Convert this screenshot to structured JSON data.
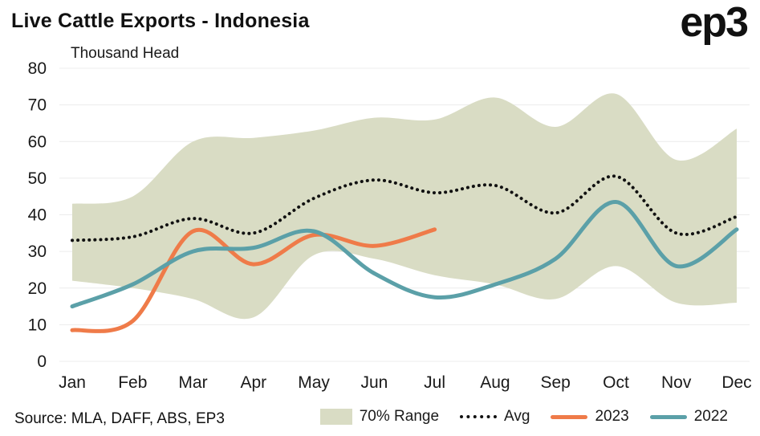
{
  "header": {
    "title": "Live Cattle Exports - Indonesia",
    "logo": "ep3"
  },
  "footer": {
    "source": "Source: MLA, DAFF, ABS, EP3"
  },
  "chart_data": {
    "type": "line",
    "title": "Live Cattle Exports - Indonesia",
    "ylabel": "Thousand Head",
    "xlabel": "",
    "categories": [
      "Jan",
      "Feb",
      "Mar",
      "Apr",
      "May",
      "Jun",
      "Jul",
      "Aug",
      "Sep",
      "Oct",
      "Nov",
      "Dec"
    ],
    "ylim": [
      0,
      80
    ],
    "ytick": 10,
    "grid": "horizontal",
    "legend_position": "bottom",
    "band": {
      "label": "70% Range",
      "color": "#d9dcc4",
      "upper": [
        43,
        45,
        60,
        61,
        63,
        66.5,
        66,
        72,
        64,
        73,
        55,
        63.5
      ],
      "lower": [
        22,
        20,
        17,
        12,
        29,
        28,
        23.5,
        21,
        17,
        26,
        16,
        16
      ]
    },
    "series": [
      {
        "name": "Avg",
        "style": "dotted",
        "color": "#111111",
        "values": [
          33,
          34,
          39,
          35,
          44.5,
          49.5,
          46,
          48,
          40.5,
          50.5,
          35,
          39.5
        ]
      },
      {
        "name": "2023",
        "style": "solid",
        "color": "#ef7b49",
        "values": [
          8.5,
          11,
          35.5,
          26.5,
          34.5,
          31.5,
          36,
          null,
          null,
          null,
          null,
          null
        ]
      },
      {
        "name": "2022",
        "style": "solid",
        "color": "#5ba0a8",
        "values": [
          15,
          21,
          30,
          31,
          35.5,
          24,
          17.5,
          21,
          28,
          43.5,
          26,
          36
        ]
      }
    ],
    "colors": {
      "grid": "#ececec",
      "text": "#1a1a1a"
    }
  }
}
